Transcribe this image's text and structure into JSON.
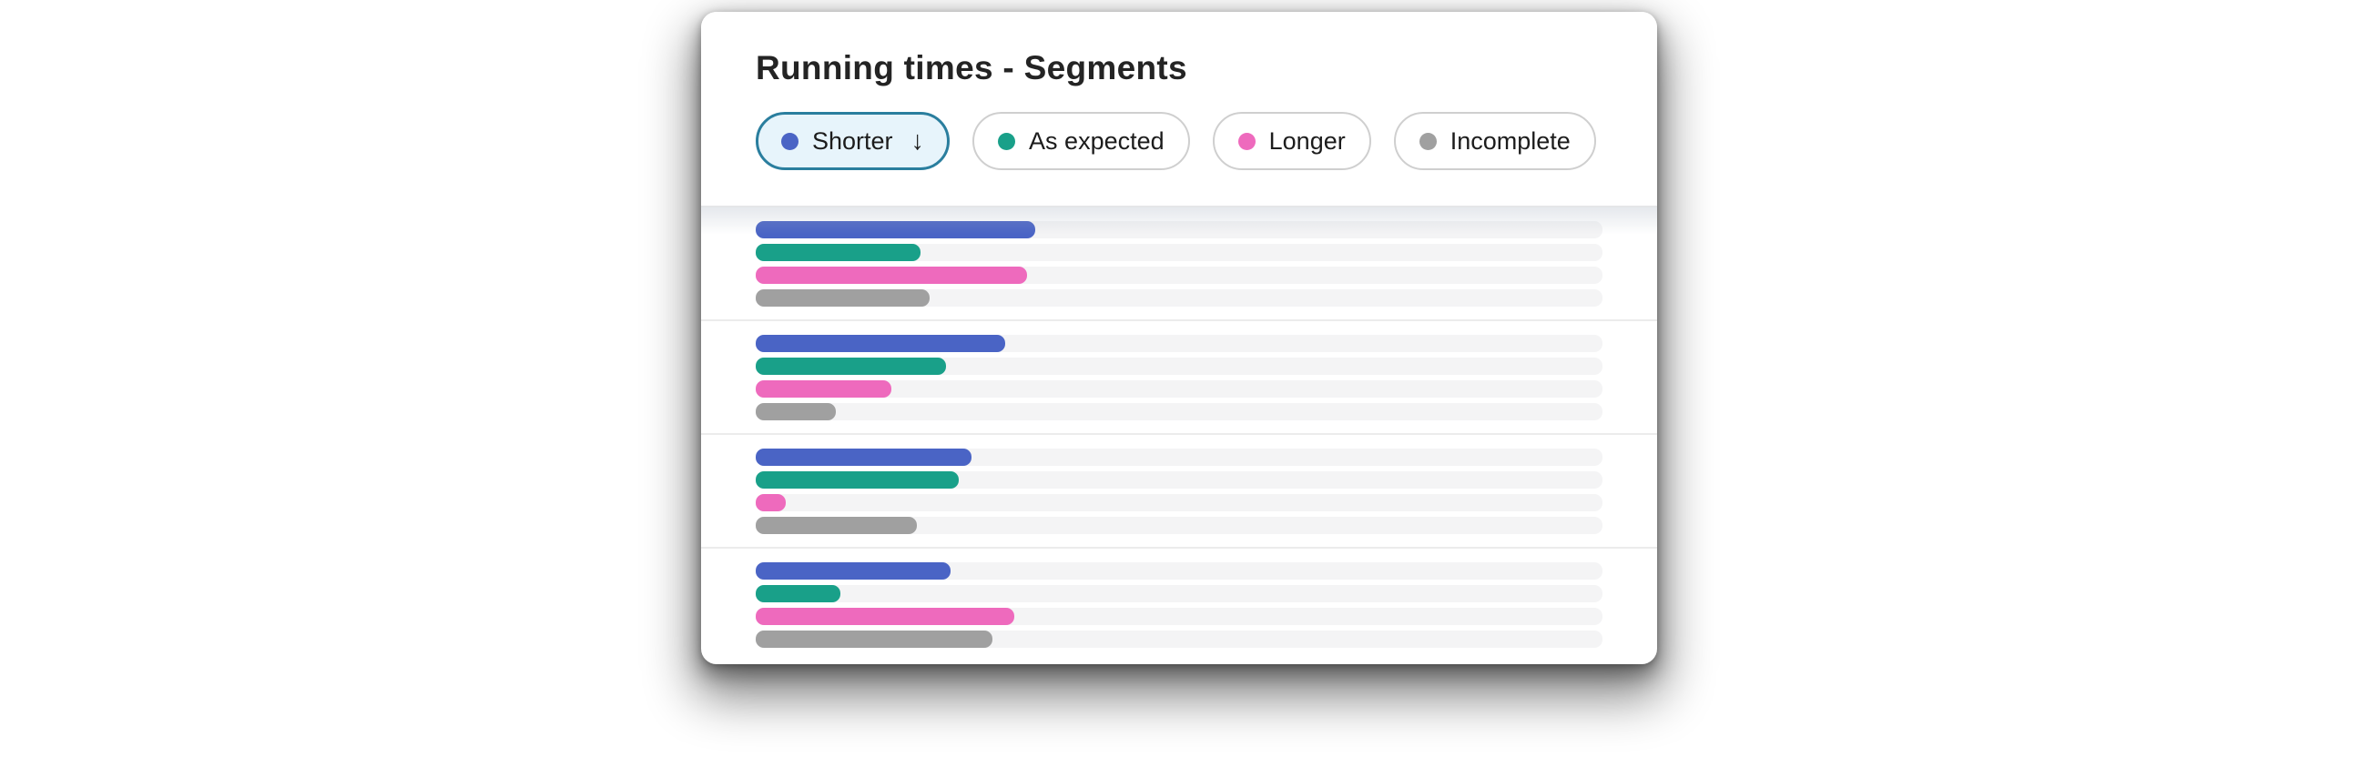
{
  "card": {
    "title": "Running times - Segments"
  },
  "filters": [
    {
      "id": "shorter",
      "label": "Shorter",
      "color": "#4a64c5",
      "active": true,
      "sort_indicator": "↓"
    },
    {
      "id": "as-expected",
      "label": "As expected",
      "color": "#19a089",
      "active": false,
      "sort_indicator": ""
    },
    {
      "id": "longer",
      "label": "Longer",
      "color": "#ee6abd",
      "active": false,
      "sort_indicator": ""
    },
    {
      "id": "incomplete",
      "label": "Incomplete",
      "color": "#a0a0a0",
      "active": false,
      "sort_indicator": ""
    }
  ],
  "theme": {
    "active_chip_background": "#e7f4fb",
    "active_chip_border": "#2a7e9e",
    "inactive_chip_border": "#cfcfcf",
    "track_color": "#f4f4f5",
    "divider_color": "#ececec",
    "card_background": "#ffffff",
    "text_color": "#242424"
  },
  "chart_data": {
    "type": "bar",
    "orientation": "horizontal",
    "title": "Running times - Segments",
    "series": [
      "Shorter",
      "As expected",
      "Longer",
      "Incomplete"
    ],
    "series_colors": [
      "#4a64c5",
      "#19a089",
      "#ee6abd",
      "#a0a0a0"
    ],
    "unit": "percent_of_track",
    "xlim": [
      0,
      100
    ],
    "gridlines": false,
    "legend_position": "top",
    "groups": [
      {
        "values": [
          33,
          19.5,
          32,
          20.5
        ]
      },
      {
        "values": [
          29.5,
          22.5,
          16,
          9.5
        ]
      },
      {
        "values": [
          25.5,
          24,
          3.5,
          19
        ]
      },
      {
        "values": [
          23,
          10,
          30.5,
          28
        ]
      }
    ]
  }
}
